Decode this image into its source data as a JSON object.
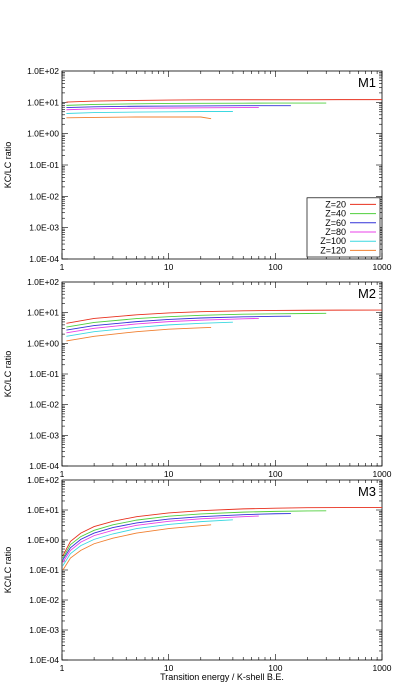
{
  "chart_data": [
    {
      "type": "line",
      "panel_label": "M1",
      "x_scale": "log",
      "y_scale": "log",
      "xlim": [
        1,
        1000
      ],
      "ylim": [
        0.0001,
        100
      ],
      "xticks": [
        "1",
        "10",
        "100",
        "1000"
      ],
      "yticks": [
        "1.0E-04",
        "1.0E-03",
        "1.0E-02",
        "1.0E-01",
        "1.0E+00",
        "1.0E+01",
        "1.0E+02"
      ],
      "ylabel": "KC/LC  ratio",
      "xlabel": "",
      "grid": false,
      "legend": "bottom-right",
      "series": [
        {
          "name": "Z=20",
          "x": [
            1.1,
            2,
            5,
            10,
            20,
            50,
            100,
            200,
            400,
            1000
          ],
          "y": [
            10.2,
            11.0,
            11.5,
            11.8,
            12.0,
            12.1,
            12.1,
            12.1,
            12.2,
            12.2
          ]
        },
        {
          "name": "Z=40",
          "x": [
            1.1,
            2,
            5,
            10,
            20,
            50,
            100,
            200,
            300
          ],
          "y": [
            8.0,
            8.6,
            9.0,
            9.2,
            9.3,
            9.4,
            9.5,
            9.5,
            9.5
          ]
        },
        {
          "name": "Z=60",
          "x": [
            1.1,
            2,
            5,
            10,
            20,
            50,
            100,
            140
          ],
          "y": [
            6.8,
            7.2,
            7.5,
            7.6,
            7.7,
            7.8,
            7.8,
            7.8
          ]
        },
        {
          "name": "Z=80",
          "x": [
            1.1,
            2,
            5,
            10,
            20,
            50,
            70
          ],
          "y": [
            5.8,
            6.2,
            6.5,
            6.6,
            6.7,
            6.8,
            6.8
          ]
        },
        {
          "name": "Z=100",
          "x": [
            1.1,
            2,
            5,
            10,
            20,
            40
          ],
          "y": [
            4.4,
            4.7,
            4.9,
            5.0,
            5.1,
            5.1
          ]
        },
        {
          "name": "Z=120",
          "x": [
            1.1,
            2,
            5,
            10,
            20,
            25
          ],
          "y": [
            3.2,
            3.3,
            3.4,
            3.4,
            3.4,
            3.0
          ]
        }
      ]
    },
    {
      "type": "line",
      "panel_label": "M2",
      "x_scale": "log",
      "y_scale": "log",
      "xlim": [
        1,
        1000
      ],
      "ylim": [
        0.0001,
        100
      ],
      "xticks": [
        "1",
        "10",
        "100",
        "1000"
      ],
      "yticks": [
        "1.0E-04",
        "1.0E-03",
        "1.0E-02",
        "1.0E-01",
        "1.0E+00",
        "1.0E+01",
        "1.0E+02"
      ],
      "ylabel": "KC/LC  ratio",
      "xlabel": "",
      "grid": false,
      "legend": "",
      "series": [
        {
          "name": "Z=20",
          "x": [
            1.1,
            2,
            5,
            10,
            20,
            50,
            100,
            200,
            400,
            1000
          ],
          "y": [
            4.5,
            6.5,
            8.5,
            9.8,
            10.8,
            11.5,
            11.8,
            12.0,
            12.1,
            12.2
          ]
        },
        {
          "name": "Z=40",
          "x": [
            1.1,
            2,
            5,
            10,
            20,
            50,
            100,
            200,
            300
          ],
          "y": [
            3.4,
            4.8,
            6.4,
            7.4,
            8.2,
            8.9,
            9.2,
            9.4,
            9.5
          ]
        },
        {
          "name": "Z=60",
          "x": [
            1.1,
            2,
            5,
            10,
            20,
            50,
            100,
            140
          ],
          "y": [
            2.7,
            3.8,
            5.1,
            6.0,
            6.7,
            7.3,
            7.6,
            7.7
          ]
        },
        {
          "name": "Z=80",
          "x": [
            1.1,
            2,
            5,
            10,
            20,
            50,
            70
          ],
          "y": [
            2.2,
            3.1,
            4.3,
            5.1,
            5.7,
            6.3,
            6.5
          ]
        },
        {
          "name": "Z=100",
          "x": [
            1.1,
            2,
            5,
            10,
            20,
            40
          ],
          "y": [
            1.7,
            2.4,
            3.3,
            4.0,
            4.5,
            4.9
          ]
        },
        {
          "name": "Z=120",
          "x": [
            1.1,
            2,
            5,
            10,
            20,
            25
          ],
          "y": [
            1.2,
            1.7,
            2.4,
            2.9,
            3.2,
            3.3
          ]
        }
      ]
    },
    {
      "type": "line",
      "panel_label": "M3",
      "x_scale": "log",
      "y_scale": "log",
      "xlim": [
        1,
        1000
      ],
      "ylim": [
        0.0001,
        100
      ],
      "xticks": [
        "1",
        "10",
        "100",
        "1000"
      ],
      "yticks": [
        "1.0E-04",
        "1.0E-03",
        "1.0E-02",
        "1.0E-01",
        "1.0E+00",
        "1.0E+01",
        "1.0E+02"
      ],
      "ylabel": "KC/LC  ratio",
      "xlabel": "Transition energy / K-shell B.E.",
      "grid": false,
      "legend": "",
      "series": [
        {
          "name": "Z=20",
          "x": [
            1.02,
            1.2,
            1.5,
            2,
            3,
            5,
            10,
            20,
            50,
            100,
            200,
            400,
            1000
          ],
          "y": [
            0.3,
            0.9,
            1.7,
            2.8,
            4.2,
            6.0,
            8.0,
            9.5,
            10.9,
            11.5,
            11.9,
            12.1,
            12.2
          ]
        },
        {
          "name": "Z=40",
          "x": [
            1.02,
            1.2,
            1.5,
            2,
            3,
            5,
            10,
            20,
            50,
            100,
            200,
            300
          ],
          "y": [
            0.25,
            0.7,
            1.3,
            2.1,
            3.2,
            4.6,
            6.2,
            7.4,
            8.5,
            9.0,
            9.3,
            9.4
          ]
        },
        {
          "name": "Z=60",
          "x": [
            1.02,
            1.2,
            1.5,
            2,
            3,
            5,
            10,
            20,
            50,
            100,
            140
          ],
          "y": [
            0.22,
            0.55,
            1.05,
            1.7,
            2.6,
            3.7,
            5.0,
            6.0,
            7.0,
            7.5,
            7.6
          ]
        },
        {
          "name": "Z=80",
          "x": [
            1.02,
            1.2,
            1.5,
            2,
            3,
            5,
            10,
            20,
            50,
            70
          ],
          "y": [
            0.18,
            0.45,
            0.85,
            1.4,
            2.1,
            3.1,
            4.2,
            5.1,
            6.0,
            6.3
          ]
        },
        {
          "name": "Z=100",
          "x": [
            1.02,
            1.2,
            1.5,
            2,
            3,
            5,
            10,
            20,
            40
          ],
          "y": [
            0.14,
            0.35,
            0.65,
            1.05,
            1.6,
            2.4,
            3.3,
            4.1,
            4.7
          ]
        },
        {
          "name": "Z=120",
          "x": [
            1.02,
            1.2,
            1.5,
            2,
            3,
            5,
            10,
            20,
            25
          ],
          "y": [
            0.1,
            0.25,
            0.45,
            0.75,
            1.15,
            1.7,
            2.4,
            3.0,
            3.2
          ]
        }
      ]
    }
  ],
  "series_colors": [
    "#e8301e",
    "#4fcf3c",
    "#3232d8",
    "#e840e8",
    "#3cd8e0",
    "#f08030"
  ],
  "axis_color": "#000000"
}
